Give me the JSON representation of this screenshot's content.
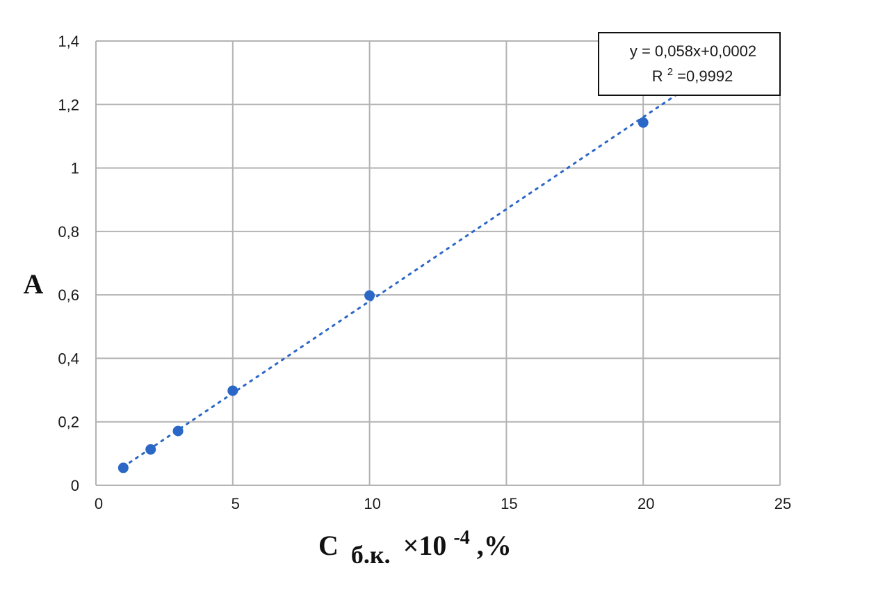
{
  "chart_data": {
    "type": "scatter",
    "x": [
      1,
      2,
      3,
      5,
      10,
      20
    ],
    "y": [
      0.055,
      0.113,
      0.171,
      0.298,
      0.598,
      1.143
    ],
    "xlim": [
      0,
      25
    ],
    "ylim": [
      0,
      1.4
    ],
    "x_ticks": [
      "0",
      "5",
      "10",
      "15",
      "20",
      "25"
    ],
    "y_ticks": [
      "0",
      "0,2",
      "0,4",
      "0,6",
      "0,8",
      "1",
      "1,2",
      "1,4"
    ],
    "ylabel": "A",
    "xlabel": {
      "main": "С",
      "subscript": "б.к.",
      "middle": "×10",
      "superscript": "-4",
      "end": ",%"
    },
    "trendline": {
      "slope": 0.058,
      "intercept": 0.0002,
      "style": "dotted",
      "equation_label": "y = 0,058x+0,0002",
      "r2_prefix": "R",
      "r2_superscript": "2",
      "r2_value": "=0,9992"
    },
    "grid": true,
    "colors": {
      "marker": "#2b67c6",
      "trendline": "#2b67c6",
      "grid": "#b3b3b3"
    }
  }
}
